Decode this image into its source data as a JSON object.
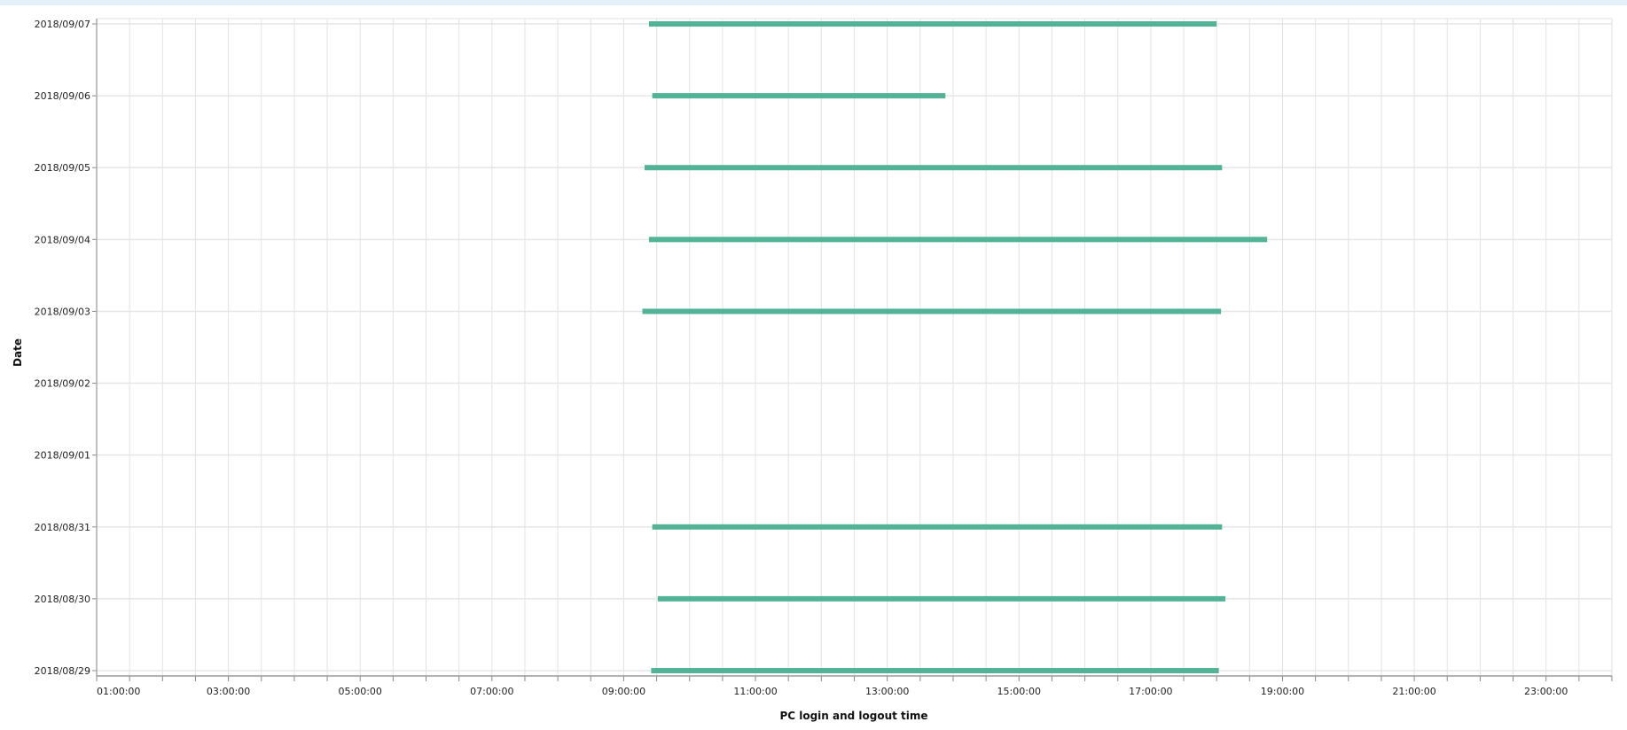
{
  "chart_data": {
    "type": "gantt-range",
    "xlabel": "PC login and logout time",
    "ylabel": "Date",
    "xlim": [
      "01:00:00",
      "24:00:00"
    ],
    "x_tick_labels": [
      "01:00:00",
      "03:00:00",
      "05:00:00",
      "07:00:00",
      "09:00:00",
      "11:00:00",
      "13:00:00",
      "15:00:00",
      "17:00:00",
      "19:00:00",
      "21:00:00",
      "23:00:00"
    ],
    "y_tick_labels": [
      "2018/09/07",
      "2018/09/06",
      "2018/09/05",
      "2018/09/04",
      "2018/09/03",
      "2018/09/02",
      "2018/09/01",
      "2018/08/31",
      "2018/08/30",
      "2018/08/29"
    ],
    "grid": true,
    "bar_color": "#52b396",
    "series": [
      {
        "date": "2018/09/07",
        "login": "09:23",
        "logout": "18:00"
      },
      {
        "date": "2018/09/06",
        "login": "09:26",
        "logout": "13:53"
      },
      {
        "date": "2018/09/05",
        "login": "09:19",
        "logout": "18:05"
      },
      {
        "date": "2018/09/04",
        "login": "09:23",
        "logout": "18:46"
      },
      {
        "date": "2018/09/03",
        "login": "09:17",
        "logout": "18:04"
      },
      {
        "date": "2018/08/31",
        "login": "09:26",
        "logout": "18:05"
      },
      {
        "date": "2018/08/30",
        "login": "09:31",
        "logout": "18:08"
      },
      {
        "date": "2018/08/29",
        "login": "09:25",
        "logout": "18:02"
      }
    ]
  }
}
